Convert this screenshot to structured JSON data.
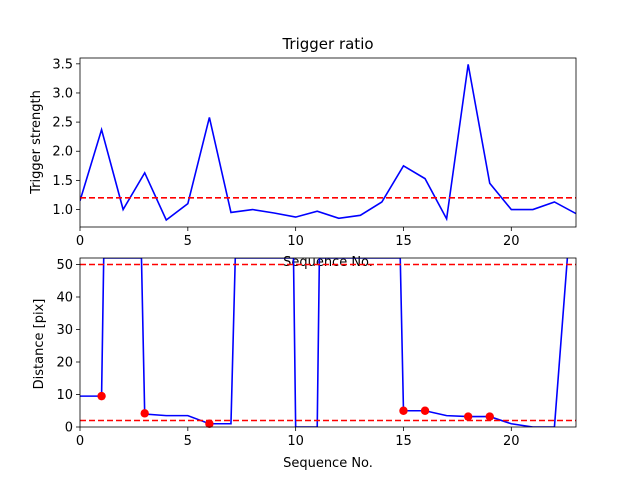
{
  "chart_data": [
    {
      "type": "line",
      "title": "Trigger ratio",
      "xlabel": "Sequence No.",
      "ylabel": "Trigger strength",
      "xlim": [
        0,
        23
      ],
      "ylim": [
        0.7,
        3.6
      ],
      "xticks": [
        0,
        5,
        10,
        15,
        20
      ],
      "yticks": [
        1.0,
        1.5,
        2.0,
        2.5,
        3.0,
        3.5
      ],
      "ytick_labels": [
        "1.0",
        "1.5",
        "2.0",
        "2.5",
        "3.0",
        "3.5"
      ],
      "threshold": 1.2,
      "series": [
        {
          "color": "#0000ff",
          "x": [
            0,
            1,
            2,
            3,
            4,
            5,
            6,
            7,
            8,
            9,
            10,
            11,
            12,
            13,
            14,
            15,
            16,
            17,
            18,
            19,
            20,
            21,
            22,
            23
          ],
          "y": [
            1.15,
            2.37,
            1.0,
            1.63,
            0.82,
            1.1,
            2.58,
            0.95,
            1.0,
            0.94,
            0.87,
            0.97,
            0.85,
            0.9,
            1.13,
            1.75,
            1.53,
            0.84,
            3.49,
            1.45,
            1.0,
            1.0,
            1.13,
            0.93
          ]
        }
      ],
      "threshold_color": "#ff0000"
    },
    {
      "type": "line",
      "title": "",
      "xlabel": "Sequence No.",
      "ylabel": "Distance [pix]",
      "xlim": [
        0,
        23
      ],
      "ylim": [
        0,
        52
      ],
      "xticks": [
        0,
        5,
        10,
        15,
        20
      ],
      "yticks": [
        0,
        10,
        20,
        30,
        40,
        50
      ],
      "ytick_labels": [
        "0",
        "10",
        "20",
        "30",
        "40",
        "50"
      ],
      "thresholds": [
        2,
        50
      ],
      "series": [
        {
          "color": "#0000ff",
          "x": [
            0,
            1,
            1.1,
            2.85,
            3,
            4,
            5,
            6,
            6.8,
            7,
            7.2,
            9.9,
            10,
            11,
            11.1,
            14.85,
            15,
            16,
            17,
            18,
            19,
            20,
            21,
            22,
            22.6
          ],
          "y": [
            9.5,
            9.5,
            52,
            52,
            4,
            3.5,
            3.5,
            1,
            1,
            1,
            52,
            52,
            0,
            0,
            52,
            52,
            5,
            5,
            3.5,
            3.2,
            3.2,
            1,
            0,
            0,
            52
          ]
        }
      ],
      "markers": {
        "color": "#ff0000",
        "x": [
          1,
          3,
          6,
          15,
          16,
          18,
          19
        ],
        "y": [
          9.5,
          4.2,
          1.0,
          5.0,
          5.0,
          3.2,
          3.2
        ]
      },
      "threshold_color": "#ff0000"
    }
  ]
}
